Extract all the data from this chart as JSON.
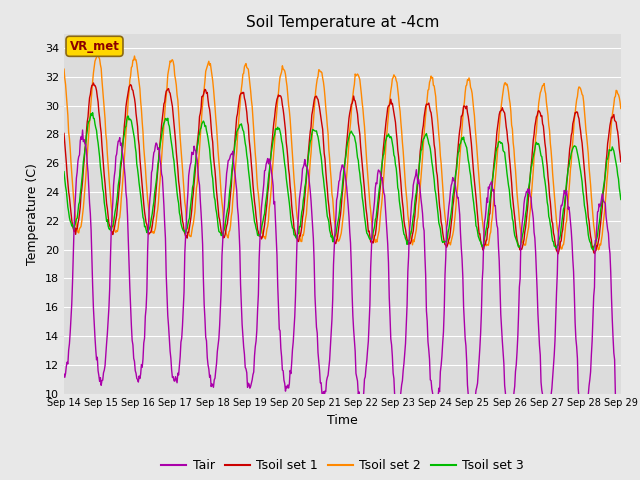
{
  "title": "Soil Temperature at -4cm",
  "xlabel": "Time",
  "ylabel": "Temperature (C)",
  "ylim": [
    10,
    35
  ],
  "yticks": [
    10,
    12,
    14,
    16,
    18,
    20,
    22,
    24,
    26,
    28,
    30,
    32,
    34
  ],
  "xtick_labels": [
    "Sep 14",
    "Sep 15",
    "Sep 16",
    "Sep 17",
    "Sep 18",
    "Sep 19",
    "Sep 20",
    "Sep 21",
    "Sep 22",
    "Sep 23",
    "Sep 24",
    "Sep 25",
    "Sep 26",
    "Sep 27",
    "Sep 28",
    "Sep 29"
  ],
  "colors": {
    "Tair": "#AA00AA",
    "Tsoil1": "#CC0000",
    "Tsoil2": "#FF8800",
    "Tsoil3": "#00BB00"
  },
  "legend_labels": [
    "Tair",
    "Tsoil set 1",
    "Tsoil set 2",
    "Tsoil set 3"
  ],
  "background_color": "#E8E8E8",
  "plot_bg_color": "#DCDCDC",
  "annotation_text": "VR_met",
  "annotation_color": "#8B0000",
  "annotation_bg": "#FFD700",
  "grid_color": "#FFFFFF",
  "figsize": [
    6.4,
    4.8
  ],
  "dpi": 100
}
